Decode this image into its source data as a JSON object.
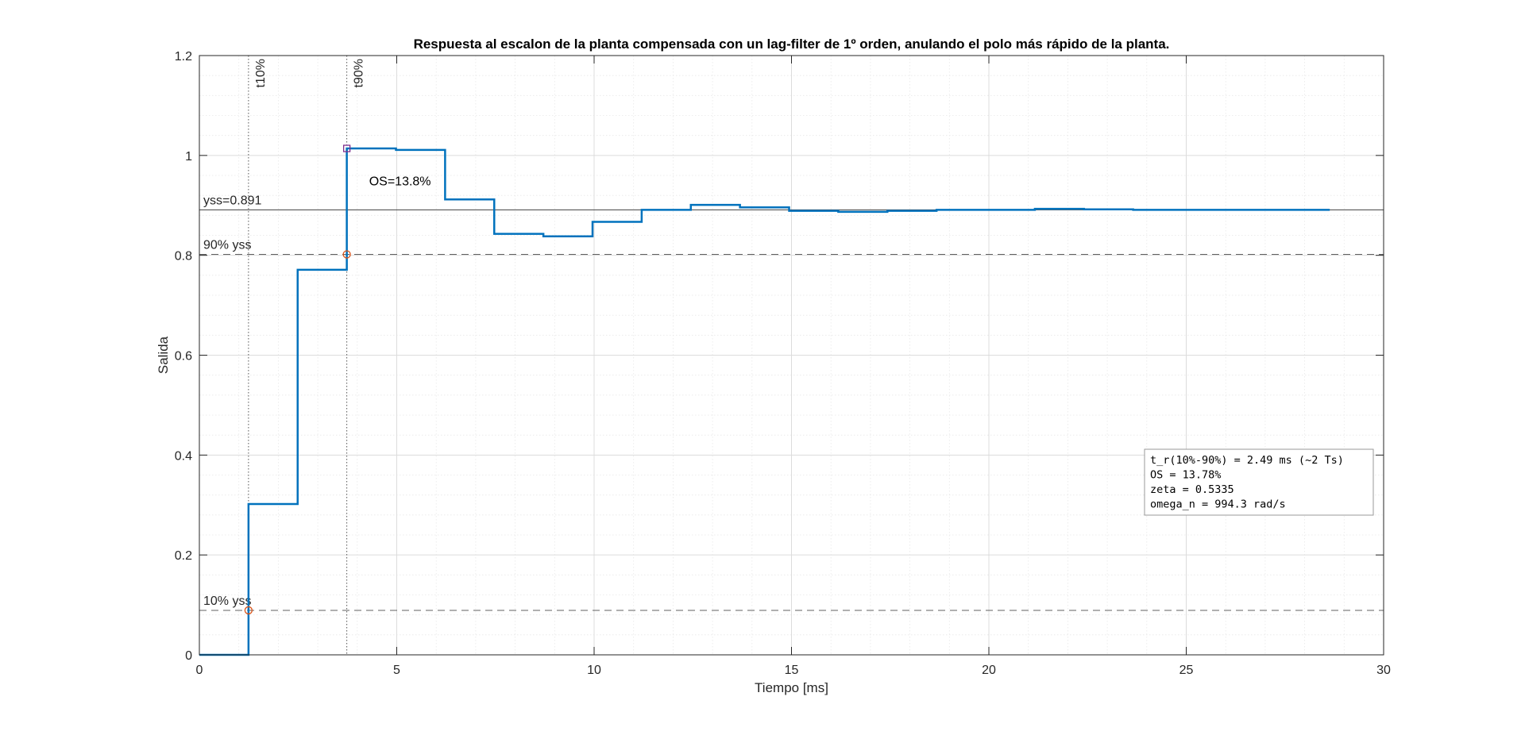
{
  "chart_data": {
    "type": "line",
    "title": "Respuesta al escalon de la planta compensada con un lag-filter de 1º orden, anulando el polo más rápido de la planta.",
    "xlabel": "Tiempo [ms]",
    "ylabel": "Salida",
    "xlim": [
      0,
      30
    ],
    "ylim": [
      0,
      1.2
    ],
    "xticks": [
      0,
      5,
      10,
      15,
      20,
      25,
      30
    ],
    "yticks": [
      0,
      0.2,
      0.4,
      0.6,
      0.8,
      1,
      1.2
    ],
    "xtick_labels": [
      "0",
      "5",
      "10",
      "15",
      "20",
      "25",
      "30"
    ],
    "ytick_labels": [
      "0",
      "0.2",
      "0.4",
      "0.6",
      "0.8",
      "1",
      "1.2"
    ],
    "grid": true,
    "minor_grid": true,
    "series": [
      {
        "type": "stairs",
        "color": "#0072BD",
        "x": [
          0,
          1.245,
          2.49,
          3.735,
          4.98,
          6.225,
          7.47,
          8.715,
          9.96,
          11.205,
          12.45,
          13.695,
          14.94,
          16.185,
          17.43,
          18.675,
          19.92,
          21.165,
          22.41,
          23.655,
          24.9,
          26.145,
          27.39,
          28.635
        ],
        "y": [
          0,
          0.302,
          0.771,
          1.014,
          1.011,
          0.912,
          0.843,
          0.838,
          0.867,
          0.891,
          0.901,
          0.896,
          0.889,
          0.887,
          0.889,
          0.891,
          0.891,
          0.893,
          0.892,
          0.891,
          0.891,
          0.891,
          0.891,
          0.891
        ]
      }
    ],
    "reference_lines": [
      {
        "y": 0.891,
        "style": "solid",
        "color": "#404040",
        "label": "yss=0.891"
      },
      {
        "y": 0.8019,
        "style": "dashed",
        "color": "#606060",
        "label": "90% yss"
      },
      {
        "y": 0.0891,
        "style": "dashed",
        "color": "#606060",
        "label": "10% yss"
      }
    ],
    "vertical_lines": [
      {
        "x": 1.245,
        "style": "dotted",
        "label": "t10%"
      },
      {
        "x": 3.735,
        "style": "dotted",
        "label": "t90%"
      }
    ],
    "overshoot_line": {
      "x": 3.735,
      "y_from": 0.891,
      "y_to": 1.014,
      "color": "#EDB120"
    },
    "markers": [
      {
        "x": 1.245,
        "y": 0.0891,
        "shape": "circle",
        "color": "#D95319"
      },
      {
        "x": 3.735,
        "y": 0.8019,
        "shape": "circle",
        "color": "#D95319"
      },
      {
        "x": 3.735,
        "y": 1.014,
        "shape": "square",
        "color": "#7E2F8E"
      }
    ],
    "annotations": [
      {
        "text": "OS=13.8%",
        "x": 4.3,
        "y": 0.95
      }
    ],
    "info_box": {
      "placement": "lower-right",
      "lines": [
        "t_r(10%-90%) = 2.49 ms  (~2 Ts)",
        "OS = 13.78%",
        "zeta = 0.5335",
        "omega_n = 994.3 rad/s"
      ]
    }
  }
}
